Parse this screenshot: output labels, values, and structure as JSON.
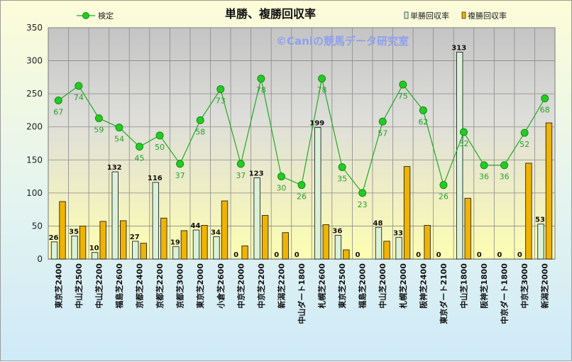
{
  "chart_data": {
    "type": "bar",
    "title": "単勝、複勝回収率",
    "watermark": "©Caniの競馬データ研究室",
    "ylim": [
      0,
      350
    ],
    "yticks": [
      0,
      50,
      100,
      150,
      200,
      250,
      300,
      350
    ],
    "grid": true,
    "legend": {
      "line": "検定",
      "bar1": "単勝回収率",
      "bar2": "複勝回収率"
    },
    "categories": [
      "東京芝2400",
      "中山芝2500",
      "中山芝2200",
      "福島芝2600",
      "京都芝2400",
      "京都芝2200",
      "京都芝3000",
      "東京芝2000",
      "小倉芝2600",
      "中京芝2000",
      "中京芝2200",
      "新潟芝2200",
      "中山ダート1800",
      "札幌芝2600",
      "東京芝2500",
      "福島芝2000",
      "中山芝2000",
      "札幌芝2000",
      "阪神芝2400",
      "東京ダート2100",
      "中山芝1800",
      "阪神芝1800",
      "中京ダート1800",
      "中京芝3000",
      "新潟芝2000"
    ],
    "series": [
      {
        "name": "単勝回収率",
        "color": "#d9f2d9",
        "values": [
          26,
          35,
          10,
          132,
          27,
          116,
          19,
          44,
          34,
          0,
          123,
          0,
          0,
          199,
          36,
          0,
          48,
          33,
          0,
          0,
          313,
          0,
          0,
          0,
          53
        ]
      },
      {
        "name": "複勝回収率",
        "color": "#f0b400",
        "values": [
          87,
          50,
          57,
          58,
          24,
          62,
          43,
          51,
          88,
          20,
          66,
          40,
          0,
          52,
          14,
          0,
          27,
          140,
          51,
          0,
          92,
          0,
          0,
          145,
          206
        ]
      },
      {
        "name": "検定",
        "type": "line",
        "color": "#22aa22",
        "values": [
          240,
          262,
          213,
          199,
          170,
          187,
          144,
          210,
          257,
          144,
          273,
          125,
          112,
          273,
          139,
          100,
          208,
          264,
          225,
          112,
          192,
          142,
          142,
          191,
          243
        ],
        "labels": [
          67,
          74,
          59,
          54,
          45,
          50,
          37,
          58,
          73,
          37,
          78,
          30,
          26,
          78,
          35,
          23,
          57,
          75,
          62,
          26,
          52,
          36,
          36,
          52,
          68
        ]
      }
    ]
  }
}
